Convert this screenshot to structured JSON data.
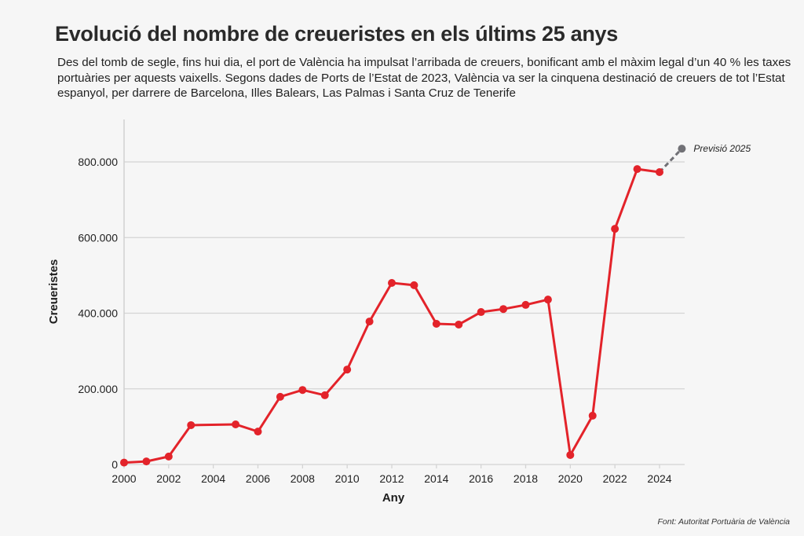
{
  "header": {
    "title": "Evolució del nombre de creueristes en els últims 25 anys",
    "subtitle": "Des del tomb de segle, fins hui dia, el port de València ha impulsat l’arribada de creuers, bonificant amb el màxim legal d’un 40 % les taxes portuàries per aquests vaixells. Segons dades de Ports de l’Estat de 2023, València va ser la cinquena destinació de creuers de tot l’Estat espanyol, per darrere de Barcelona, Illes Balears, Las Palmas i Santa Cruz de Tenerife"
  },
  "footer": {
    "source": "Font: Autoritat Portuària de València"
  },
  "colors": {
    "line": "#e3232a",
    "forecast": "#717176",
    "grid": "#d4d4d4",
    "background": "#f6f6f6"
  },
  "chart_data": {
    "type": "line",
    "title": "Evolució del nombre de creueristes en els últims 25 anys",
    "xlabel": "Any",
    "ylabel": "Creueristes",
    "xlim": [
      2000,
      2025
    ],
    "ylim": [
      0,
      900000
    ],
    "x_ticks": [
      "2000",
      "2002",
      "2004",
      "2006",
      "2008",
      "2010",
      "2012",
      "2014",
      "2016",
      "2018",
      "2020",
      "2022",
      "2024"
    ],
    "y_ticks": [
      {
        "value": 0,
        "label": "0"
      },
      {
        "value": 200000,
        "label": "200.000"
      },
      {
        "value": 400000,
        "label": "400.000"
      },
      {
        "value": 600000,
        "label": "600.000"
      },
      {
        "value": 800000,
        "label": "800.000"
      }
    ],
    "grid": true,
    "series": [
      {
        "name": "Creueristes",
        "x": [
          2000,
          2001,
          2002,
          2003,
          2005,
          2006,
          2007,
          2008,
          2009,
          2010,
          2011,
          2012,
          2013,
          2014,
          2015,
          2016,
          2017,
          2018,
          2019,
          2020,
          2021,
          2022,
          2023,
          2024
        ],
        "values": [
          5000,
          8000,
          21000,
          104000,
          106000,
          87000,
          179000,
          197000,
          183000,
          251000,
          378000,
          480000,
          474000,
          372000,
          370000,
          403000,
          411000,
          422000,
          436000,
          25000,
          129000,
          623000,
          781000,
          773000
        ]
      },
      {
        "name": "Previsió",
        "dashed": true,
        "x": [
          2024,
          2025
        ],
        "values": [
          773000,
          835000
        ]
      }
    ],
    "annotations": [
      {
        "x": 2025,
        "y": 835000,
        "text": "Previsió 2025"
      }
    ]
  }
}
